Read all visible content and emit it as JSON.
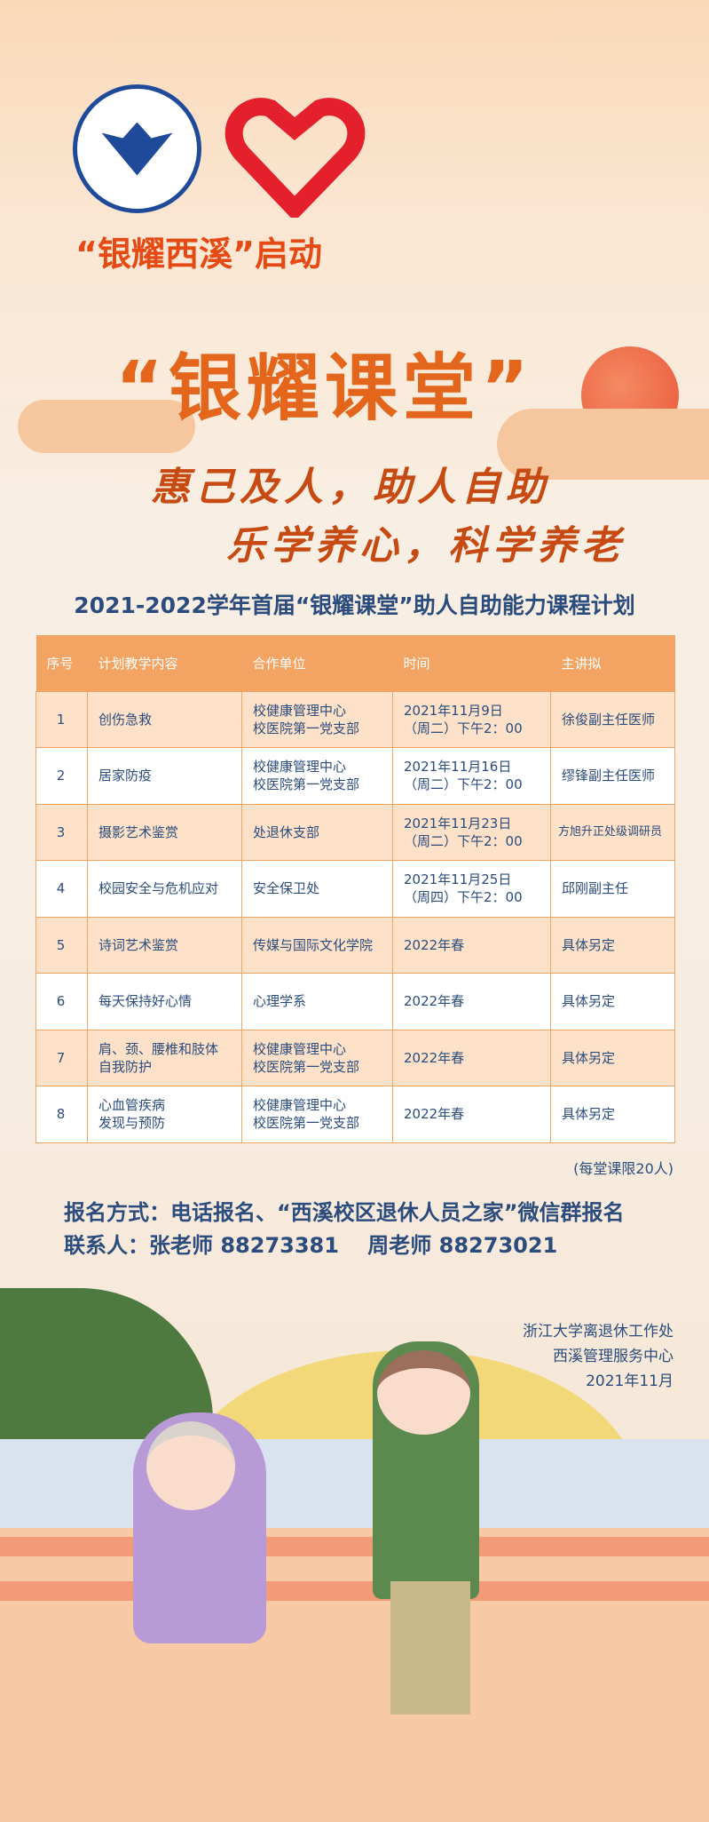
{
  "header": {
    "university_logo": "浙江大学 ZHEJIANG UNIVERSITY 1897",
    "volunteer_logo": "heart-hand-icon",
    "launch_text": "“银耀西溪”启动"
  },
  "title": "“银耀课堂”",
  "slogans": [
    "惠己及人，助人自助",
    "乐学养心，科学养老"
  ],
  "subtitle": "2021-2022学年首届“银耀课堂”助人自助能力课程计划",
  "table": {
    "headers": [
      "序号",
      "计划教学内容",
      "合作单位",
      "时间",
      "主讲拟"
    ],
    "rows": [
      [
        "1",
        "创伤急救",
        "校健康管理中心\n校医院第一党支部",
        "2021年11月9日\n（周二）下午2：00",
        "徐俊副主任医师"
      ],
      [
        "2",
        "居家防疫",
        "校健康管理中心\n校医院第一党支部",
        "2021年11月16日\n（周二）下午2：00",
        "缪锋副主任医师"
      ],
      [
        "3",
        "摄影艺术鉴赏",
        "处退休支部",
        "2021年11月23日\n（周二）下午2：00",
        "方旭升正处级调研员"
      ],
      [
        "4",
        "校园安全与危机应对",
        "安全保卫处",
        "2021年11月25日\n（周四）下午2：00",
        "邱刚副主任"
      ],
      [
        "5",
        "诗词艺术鉴赏",
        "传媒与国际文化学院",
        "2022年春",
        "具体另定"
      ],
      [
        "6",
        "每天保持好心情",
        "心理学系",
        "2022年春",
        "具体另定"
      ],
      [
        "7",
        "肩、颈、腰椎和肢体\n自我防护",
        "校健康管理中心\n校医院第一党支部",
        "2022年春",
        "具体另定"
      ],
      [
        "8",
        "心血管疾病\n发现与预防",
        "校健康管理中心\n校医院第一党支部",
        "2022年春",
        "具体另定"
      ]
    ]
  },
  "limit_note": "(每堂课限20人)",
  "registration": "报名方式：电话报名、“西溪校区退休人员之家”微信群报名",
  "contacts": "联系人：张老师 88273381　 周老师 88273021",
  "organizer": [
    "浙江大学离退休工作处",
    "西溪管理服务中心",
    "2021年11月"
  ],
  "colors": {
    "accent": "#e4661c",
    "header": "#f4a462",
    "text": "#2b4c7c"
  }
}
